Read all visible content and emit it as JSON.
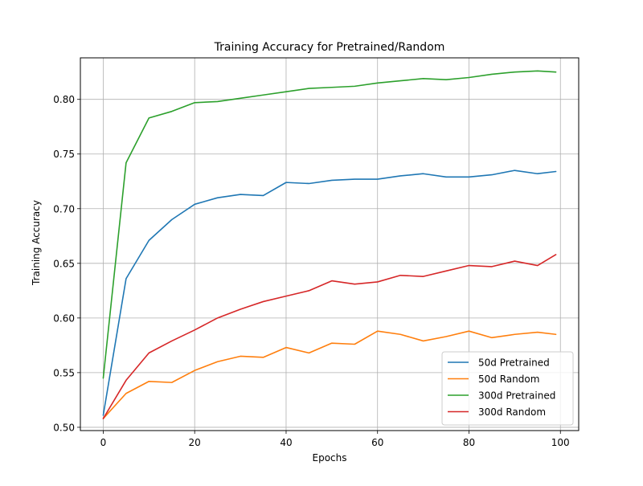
{
  "chart_data": {
    "type": "line",
    "title": "Training Accuracy for Pretrained/Random",
    "xlabel": "Epochs",
    "ylabel": "Training Accuracy",
    "xlim": [
      -5,
      104
    ],
    "ylim": [
      0.497,
      0.838
    ],
    "xticks": [
      0,
      20,
      40,
      60,
      80,
      100
    ],
    "yticks": [
      0.5,
      0.55,
      0.6,
      0.65,
      0.7,
      0.75,
      0.8
    ],
    "grid": true,
    "legend_position": "lower-right",
    "x": [
      0,
      5,
      10,
      15,
      20,
      25,
      30,
      35,
      40,
      45,
      50,
      55,
      60,
      65,
      70,
      75,
      80,
      85,
      90,
      95,
      99
    ],
    "series": [
      {
        "name": "50d Pretrained",
        "color": "#1f77b4",
        "values": [
          0.511,
          0.636,
          0.671,
          0.69,
          0.704,
          0.71,
          0.713,
          0.712,
          0.724,
          0.723,
          0.726,
          0.727,
          0.727,
          0.73,
          0.732,
          0.729,
          0.729,
          0.731,
          0.735,
          0.732,
          0.734
        ]
      },
      {
        "name": "50d Random",
        "color": "#ff7f0e",
        "values": [
          0.508,
          0.531,
          0.542,
          0.541,
          0.552,
          0.56,
          0.565,
          0.564,
          0.573,
          0.568,
          0.577,
          0.576,
          0.588,
          0.585,
          0.579,
          0.583,
          0.588,
          0.582,
          0.585,
          0.587,
          0.585
        ]
      },
      {
        "name": "300d Pretrained",
        "color": "#2ca02c",
        "values": [
          0.545,
          0.742,
          0.783,
          0.789,
          0.797,
          0.798,
          0.801,
          0.804,
          0.807,
          0.81,
          0.811,
          0.812,
          0.815,
          0.817,
          0.819,
          0.818,
          0.82,
          0.823,
          0.825,
          0.826,
          0.825
        ]
      },
      {
        "name": "300d Random",
        "color": "#d62728",
        "values": [
          0.508,
          0.543,
          0.568,
          0.579,
          0.589,
          0.6,
          0.608,
          0.615,
          0.62,
          0.625,
          0.634,
          0.631,
          0.633,
          0.639,
          0.638,
          0.643,
          0.648,
          0.647,
          0.652,
          0.648,
          0.658
        ]
      }
    ]
  }
}
